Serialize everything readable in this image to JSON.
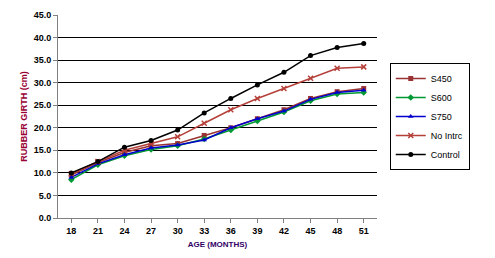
{
  "chart_data": {
    "type": "line",
    "x_label": "AGE (MONTHS)",
    "y_label": "RUBBER GIRTH (cm)",
    "categories": [
      "18",
      "21",
      "24",
      "27",
      "30",
      "33",
      "36",
      "39",
      "42",
      "45",
      "48",
      "51"
    ],
    "series": [
      {
        "name": "S450",
        "color": "#993333",
        "marker": "square",
        "values": [
          9.5,
          12.3,
          14.5,
          16.0,
          16.5,
          18.3,
          20.0,
          22.0,
          24.0,
          26.5,
          28.0,
          28.7
        ]
      },
      {
        "name": "S600",
        "color": "#009933",
        "marker": "diamond",
        "values": [
          8.5,
          11.8,
          13.8,
          15.2,
          16.0,
          17.5,
          19.5,
          21.5,
          23.5,
          26.0,
          27.5,
          27.8
        ]
      },
      {
        "name": "S750",
        "color": "#0000cc",
        "marker": "triangle-up",
        "values": [
          9.0,
          12.0,
          14.0,
          15.5,
          16.2,
          17.3,
          20.0,
          22.0,
          23.7,
          26.3,
          27.8,
          28.3
        ]
      },
      {
        "name": "No Intrc",
        "color": "#b5403a",
        "marker": "x",
        "values": [
          9.8,
          12.5,
          15.0,
          16.5,
          18.0,
          21.0,
          24.0,
          26.5,
          28.7,
          31.0,
          33.2,
          33.5
        ]
      },
      {
        "name": "Control",
        "color": "#000000",
        "marker": "circle",
        "values": [
          10.0,
          12.5,
          15.7,
          17.2,
          19.5,
          23.3,
          26.5,
          29.5,
          32.3,
          36.0,
          37.8,
          38.7
        ]
      }
    ],
    "ylim": [
      0,
      45
    ],
    "yticks": [
      {
        "value": 0,
        "label": "0.0"
      },
      {
        "value": 5,
        "label": "5.0"
      },
      {
        "value": 10,
        "label": "10.0"
      },
      {
        "value": 15,
        "label": "15.0"
      },
      {
        "value": 20,
        "label": "20.0"
      },
      {
        "value": 25,
        "label": "25.0"
      },
      {
        "value": 30,
        "label": "30.0"
      },
      {
        "value": 35,
        "label": "35.0"
      },
      {
        "value": 40,
        "label": "40.0"
      },
      {
        "value": 45,
        "label": "45.0"
      }
    ],
    "grid": true,
    "legend": "right"
  }
}
